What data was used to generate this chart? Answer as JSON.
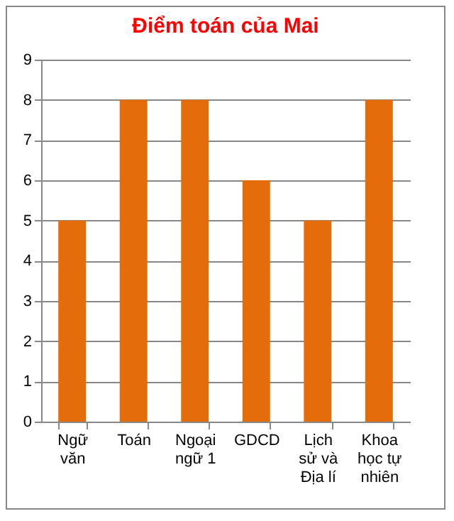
{
  "chart_data": {
    "type": "bar",
    "title": "Điểm toán của Mai",
    "categories": [
      "Ngữ văn",
      "Toán",
      "Ngoại ngữ 1",
      "GDCD",
      "Lịch sử và Địa lí",
      "Khoa học tự nhiên"
    ],
    "values": [
      5,
      8,
      8,
      6,
      5,
      8
    ],
    "color": "#e46c0a",
    "ylim": [
      0,
      9
    ],
    "yticks": [
      0,
      1,
      2,
      3,
      4,
      5,
      6,
      7,
      8,
      9
    ],
    "grid": "y"
  }
}
